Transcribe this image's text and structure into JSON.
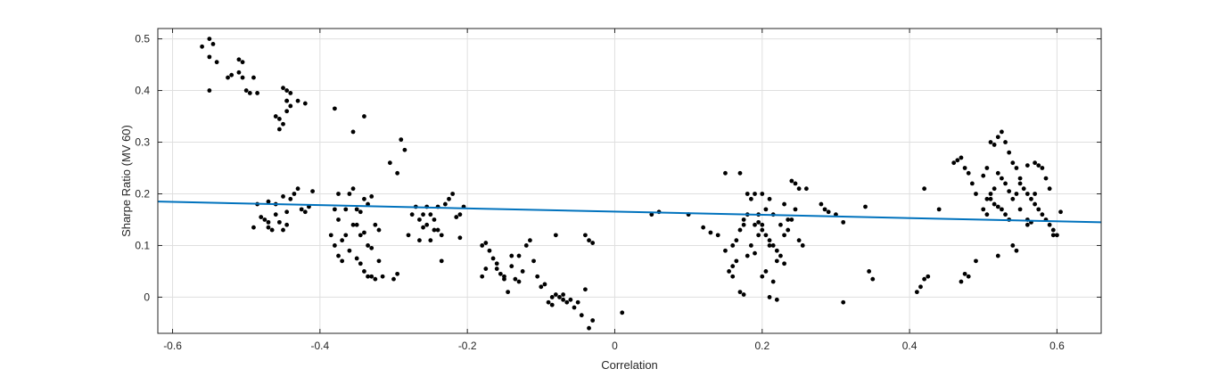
{
  "chart_data": {
    "type": "scatter",
    "title": "",
    "xlabel": "Correlation",
    "ylabel": "Sharpe Ratio (MV 60)",
    "xlim": [
      -0.62,
      0.66
    ],
    "ylim": [
      -0.07,
      0.52
    ],
    "xticks": [
      -0.6,
      -0.4,
      -0.2,
      0,
      0.2,
      0.4,
      0.6
    ],
    "xtick_labels": [
      "-0.6",
      "-0.4",
      "-0.2",
      "0",
      "0.2",
      "0.4",
      "0.6"
    ],
    "yticks": [
      0,
      0.1,
      0.2,
      0.3,
      0.4,
      0.5
    ],
    "ytick_labels": [
      "0",
      "0.1",
      "0.2",
      "0.3",
      "0.4",
      "0.5"
    ],
    "grid": true,
    "colors": {
      "points": "#000000",
      "fit_line": "#0072BD",
      "grid": "#dfdfdf",
      "axes": "#262626"
    },
    "series": [
      {
        "type": "scatter",
        "points": [
          [
            -0.56,
            0.485
          ],
          [
            -0.55,
            0.5
          ],
          [
            -0.545,
            0.49
          ],
          [
            -0.55,
            0.465
          ],
          [
            -0.54,
            0.455
          ],
          [
            -0.55,
            0.4
          ],
          [
            -0.525,
            0.425
          ],
          [
            -0.52,
            0.43
          ],
          [
            -0.51,
            0.435
          ],
          [
            -0.505,
            0.425
          ],
          [
            -0.5,
            0.4
          ],
          [
            -0.495,
            0.395
          ],
          [
            -0.49,
            0.425
          ],
          [
            -0.485,
            0.395
          ],
          [
            -0.51,
            0.46
          ],
          [
            -0.505,
            0.455
          ],
          [
            -0.45,
            0.405
          ],
          [
            -0.445,
            0.4
          ],
          [
            -0.44,
            0.395
          ],
          [
            -0.445,
            0.38
          ],
          [
            -0.44,
            0.37
          ],
          [
            -0.445,
            0.36
          ],
          [
            -0.45,
            0.335
          ],
          [
            -0.455,
            0.345
          ],
          [
            -0.46,
            0.35
          ],
          [
            -0.455,
            0.325
          ],
          [
            -0.445,
            0.38
          ],
          [
            -0.43,
            0.38
          ],
          [
            -0.42,
            0.375
          ],
          [
            -0.38,
            0.365
          ],
          [
            -0.34,
            0.35
          ],
          [
            -0.355,
            0.32
          ],
          [
            -0.29,
            0.305
          ],
          [
            -0.285,
            0.285
          ],
          [
            -0.305,
            0.26
          ],
          [
            -0.295,
            0.24
          ],
          [
            -0.49,
            0.135
          ],
          [
            -0.485,
            0.18
          ],
          [
            -0.48,
            0.155
          ],
          [
            -0.475,
            0.15
          ],
          [
            -0.47,
            0.145
          ],
          [
            -0.47,
            0.135
          ],
          [
            -0.465,
            0.13
          ],
          [
            -0.46,
            0.16
          ],
          [
            -0.455,
            0.145
          ],
          [
            -0.45,
            0.13
          ],
          [
            -0.445,
            0.14
          ],
          [
            -0.44,
            0.19
          ],
          [
            -0.435,
            0.2
          ],
          [
            -0.43,
            0.21
          ],
          [
            -0.42,
            0.165
          ],
          [
            -0.415,
            0.175
          ],
          [
            -0.41,
            0.205
          ],
          [
            -0.425,
            0.17
          ],
          [
            -0.46,
            0.18
          ],
          [
            -0.47,
            0.185
          ],
          [
            -0.45,
            0.195
          ],
          [
            -0.445,
            0.165
          ],
          [
            -0.385,
            0.12
          ],
          [
            -0.38,
            0.1
          ],
          [
            -0.375,
            0.2
          ],
          [
            -0.375,
            0.08
          ],
          [
            -0.37,
            0.11
          ],
          [
            -0.365,
            0.12
          ],
          [
            -0.36,
            0.2
          ],
          [
            -0.355,
            0.21
          ],
          [
            -0.35,
            0.17
          ],
          [
            -0.345,
            0.165
          ],
          [
            -0.34,
            0.19
          ],
          [
            -0.335,
            0.18
          ],
          [
            -0.35,
            0.14
          ],
          [
            -0.345,
            0.12
          ],
          [
            -0.34,
            0.125
          ],
          [
            -0.335,
            0.1
          ],
          [
            -0.33,
            0.095
          ],
          [
            -0.325,
            0.14
          ],
          [
            -0.35,
            0.075
          ],
          [
            -0.345,
            0.065
          ],
          [
            -0.34,
            0.05
          ],
          [
            -0.335,
            0.04
          ],
          [
            -0.33,
            0.04
          ],
          [
            -0.325,
            0.035
          ],
          [
            -0.32,
            0.07
          ],
          [
            -0.315,
            0.04
          ],
          [
            -0.37,
            0.07
          ],
          [
            -0.36,
            0.09
          ],
          [
            -0.365,
            0.17
          ],
          [
            -0.355,
            0.14
          ],
          [
            -0.3,
            0.035
          ],
          [
            -0.295,
            0.045
          ],
          [
            -0.38,
            0.17
          ],
          [
            -0.375,
            0.15
          ],
          [
            -0.32,
            0.13
          ],
          [
            -0.33,
            0.195
          ],
          [
            -0.28,
            0.12
          ],
          [
            -0.275,
            0.16
          ],
          [
            -0.27,
            0.175
          ],
          [
            -0.265,
            0.15
          ],
          [
            -0.26,
            0.135
          ],
          [
            -0.255,
            0.14
          ],
          [
            -0.25,
            0.16
          ],
          [
            -0.245,
            0.15
          ],
          [
            -0.24,
            0.13
          ],
          [
            -0.235,
            0.12
          ],
          [
            -0.23,
            0.18
          ],
          [
            -0.225,
            0.19
          ],
          [
            -0.22,
            0.2
          ],
          [
            -0.215,
            0.155
          ],
          [
            -0.21,
            0.115
          ],
          [
            -0.205,
            0.175
          ],
          [
            -0.25,
            0.11
          ],
          [
            -0.245,
            0.13
          ],
          [
            -0.24,
            0.175
          ],
          [
            -0.235,
            0.07
          ],
          [
            -0.265,
            0.11
          ],
          [
            -0.26,
            0.16
          ],
          [
            -0.255,
            0.175
          ],
          [
            -0.21,
            0.16
          ],
          [
            -0.18,
            0.1
          ],
          [
            -0.175,
            0.105
          ],
          [
            -0.17,
            0.09
          ],
          [
            -0.165,
            0.075
          ],
          [
            -0.16,
            0.065
          ],
          [
            -0.155,
            0.045
          ],
          [
            -0.15,
            0.04
          ],
          [
            -0.145,
            0.01
          ],
          [
            -0.14,
            0.06
          ],
          [
            -0.135,
            0.035
          ],
          [
            -0.13,
            0.03
          ],
          [
            -0.125,
            0.05
          ],
          [
            -0.12,
            0.1
          ],
          [
            -0.115,
            0.11
          ],
          [
            -0.11,
            0.07
          ],
          [
            -0.105,
            0.04
          ],
          [
            -0.1,
            0.02
          ],
          [
            -0.095,
            0.025
          ],
          [
            -0.13,
            0.08
          ],
          [
            -0.14,
            0.08
          ],
          [
            -0.15,
            0.035
          ],
          [
            -0.18,
            0.04
          ],
          [
            -0.175,
            0.055
          ],
          [
            -0.16,
            0.055
          ],
          [
            -0.09,
            -0.01
          ],
          [
            -0.085,
            -0.015
          ],
          [
            -0.08,
            0.005
          ],
          [
            -0.075,
            0.0
          ],
          [
            -0.07,
            0.005
          ],
          [
            -0.065,
            -0.01
          ],
          [
            -0.06,
            -0.005
          ],
          [
            -0.055,
            -0.02
          ],
          [
            -0.05,
            -0.01
          ],
          [
            -0.045,
            -0.035
          ],
          [
            -0.04,
            0.015
          ],
          [
            -0.035,
            -0.06
          ],
          [
            -0.03,
            -0.045
          ],
          [
            -0.04,
            0.12
          ],
          [
            -0.035,
            0.11
          ],
          [
            -0.03,
            0.105
          ],
          [
            -0.08,
            0.12
          ],
          [
            0.01,
            -0.03
          ],
          [
            -0.085,
            0.0
          ],
          [
            -0.07,
            -0.005
          ],
          [
            0.05,
            0.16
          ],
          [
            0.06,
            0.165
          ],
          [
            0.1,
            0.16
          ],
          [
            0.12,
            0.135
          ],
          [
            0.13,
            0.125
          ],
          [
            0.14,
            0.12
          ],
          [
            0.15,
            0.09
          ],
          [
            0.16,
            0.1
          ],
          [
            0.165,
            0.11
          ],
          [
            0.17,
            0.13
          ],
          [
            0.175,
            0.14
          ],
          [
            0.18,
            0.16
          ],
          [
            0.185,
            0.19
          ],
          [
            0.19,
            0.2
          ],
          [
            0.195,
            0.145
          ],
          [
            0.2,
            0.13
          ],
          [
            0.205,
            0.12
          ],
          [
            0.21,
            0.11
          ],
          [
            0.215,
            0.1
          ],
          [
            0.22,
            0.09
          ],
          [
            0.225,
            0.08
          ],
          [
            0.23,
            0.12
          ],
          [
            0.235,
            0.13
          ],
          [
            0.24,
            0.15
          ],
          [
            0.245,
            0.17
          ],
          [
            0.25,
            0.11
          ],
          [
            0.255,
            0.1
          ],
          [
            0.26,
            0.21
          ],
          [
            0.15,
            0.24
          ],
          [
            0.17,
            0.24
          ],
          [
            0.18,
            0.2
          ],
          [
            0.19,
            0.14
          ],
          [
            0.2,
            0.14
          ],
          [
            0.21,
            0.1
          ],
          [
            0.22,
            0.07
          ],
          [
            0.23,
            0.065
          ],
          [
            0.17,
            0.01
          ],
          [
            0.175,
            0.005
          ],
          [
            0.16,
            0.06
          ],
          [
            0.165,
            0.07
          ],
          [
            0.18,
            0.08
          ],
          [
            0.19,
            0.085
          ],
          [
            0.2,
            0.04
          ],
          [
            0.205,
            0.05
          ],
          [
            0.21,
            0.0
          ],
          [
            0.215,
            0.03
          ],
          [
            0.22,
            -0.005
          ],
          [
            0.185,
            0.1
          ],
          [
            0.195,
            0.12
          ],
          [
            0.205,
            0.17
          ],
          [
            0.215,
            0.16
          ],
          [
            0.225,
            0.14
          ],
          [
            0.235,
            0.15
          ],
          [
            0.24,
            0.225
          ],
          [
            0.245,
            0.22
          ],
          [
            0.25,
            0.21
          ],
          [
            0.28,
            0.18
          ],
          [
            0.285,
            0.17
          ],
          [
            0.29,
            0.165
          ],
          [
            0.3,
            0.16
          ],
          [
            0.31,
            0.145
          ],
          [
            0.31,
            -0.01
          ],
          [
            0.34,
            0.175
          ],
          [
            0.345,
            0.05
          ],
          [
            0.35,
            0.035
          ],
          [
            0.175,
            0.15
          ],
          [
            0.195,
            0.16
          ],
          [
            0.2,
            0.2
          ],
          [
            0.21,
            0.19
          ],
          [
            0.23,
            0.18
          ],
          [
            0.155,
            0.05
          ],
          [
            0.16,
            0.04
          ],
          [
            0.41,
            0.01
          ],
          [
            0.415,
            0.02
          ],
          [
            0.42,
            0.035
          ],
          [
            0.425,
            0.04
          ],
          [
            0.44,
            0.17
          ],
          [
            0.42,
            0.21
          ],
          [
            0.46,
            0.26
          ],
          [
            0.465,
            0.265
          ],
          [
            0.47,
            0.27
          ],
          [
            0.475,
            0.25
          ],
          [
            0.48,
            0.24
          ],
          [
            0.485,
            0.22
          ],
          [
            0.49,
            0.2
          ],
          [
            0.5,
            0.235
          ],
          [
            0.505,
            0.25
          ],
          [
            0.51,
            0.3
          ],
          [
            0.515,
            0.295
          ],
          [
            0.52,
            0.31
          ],
          [
            0.525,
            0.32
          ],
          [
            0.53,
            0.3
          ],
          [
            0.535,
            0.28
          ],
          [
            0.54,
            0.26
          ],
          [
            0.545,
            0.25
          ],
          [
            0.55,
            0.22
          ],
          [
            0.555,
            0.21
          ],
          [
            0.56,
            0.2
          ],
          [
            0.565,
            0.19
          ],
          [
            0.57,
            0.18
          ],
          [
            0.575,
            0.17
          ],
          [
            0.58,
            0.16
          ],
          [
            0.585,
            0.15
          ],
          [
            0.59,
            0.14
          ],
          [
            0.595,
            0.13
          ],
          [
            0.6,
            0.12
          ],
          [
            0.605,
            0.165
          ],
          [
            0.51,
            0.19
          ],
          [
            0.515,
            0.18
          ],
          [
            0.52,
            0.175
          ],
          [
            0.525,
            0.17
          ],
          [
            0.53,
            0.16
          ],
          [
            0.535,
            0.15
          ],
          [
            0.54,
            0.1
          ],
          [
            0.545,
            0.09
          ],
          [
            0.5,
            0.17
          ],
          [
            0.505,
            0.16
          ],
          [
            0.49,
            0.07
          ],
          [
            0.475,
            0.045
          ],
          [
            0.47,
            0.03
          ],
          [
            0.48,
            0.04
          ],
          [
            0.52,
            0.08
          ],
          [
            0.55,
            0.17
          ],
          [
            0.56,
            0.15
          ],
          [
            0.57,
            0.26
          ],
          [
            0.575,
            0.255
          ],
          [
            0.58,
            0.25
          ],
          [
            0.585,
            0.23
          ],
          [
            0.59,
            0.21
          ],
          [
            0.595,
            0.12
          ],
          [
            0.56,
            0.255
          ],
          [
            0.55,
            0.23
          ],
          [
            0.545,
            0.2
          ],
          [
            0.54,
            0.19
          ],
          [
            0.535,
            0.205
          ],
          [
            0.53,
            0.22
          ],
          [
            0.525,
            0.23
          ],
          [
            0.52,
            0.24
          ],
          [
            0.515,
            0.21
          ],
          [
            0.51,
            0.2
          ],
          [
            0.505,
            0.19
          ],
          [
            0.56,
            0.14
          ],
          [
            0.565,
            0.145
          ],
          [
            0.57,
            0.2
          ]
        ]
      },
      {
        "type": "line",
        "x": [
          -0.62,
          0.66
        ],
        "y": [
          0.185,
          0.145
        ]
      }
    ]
  }
}
